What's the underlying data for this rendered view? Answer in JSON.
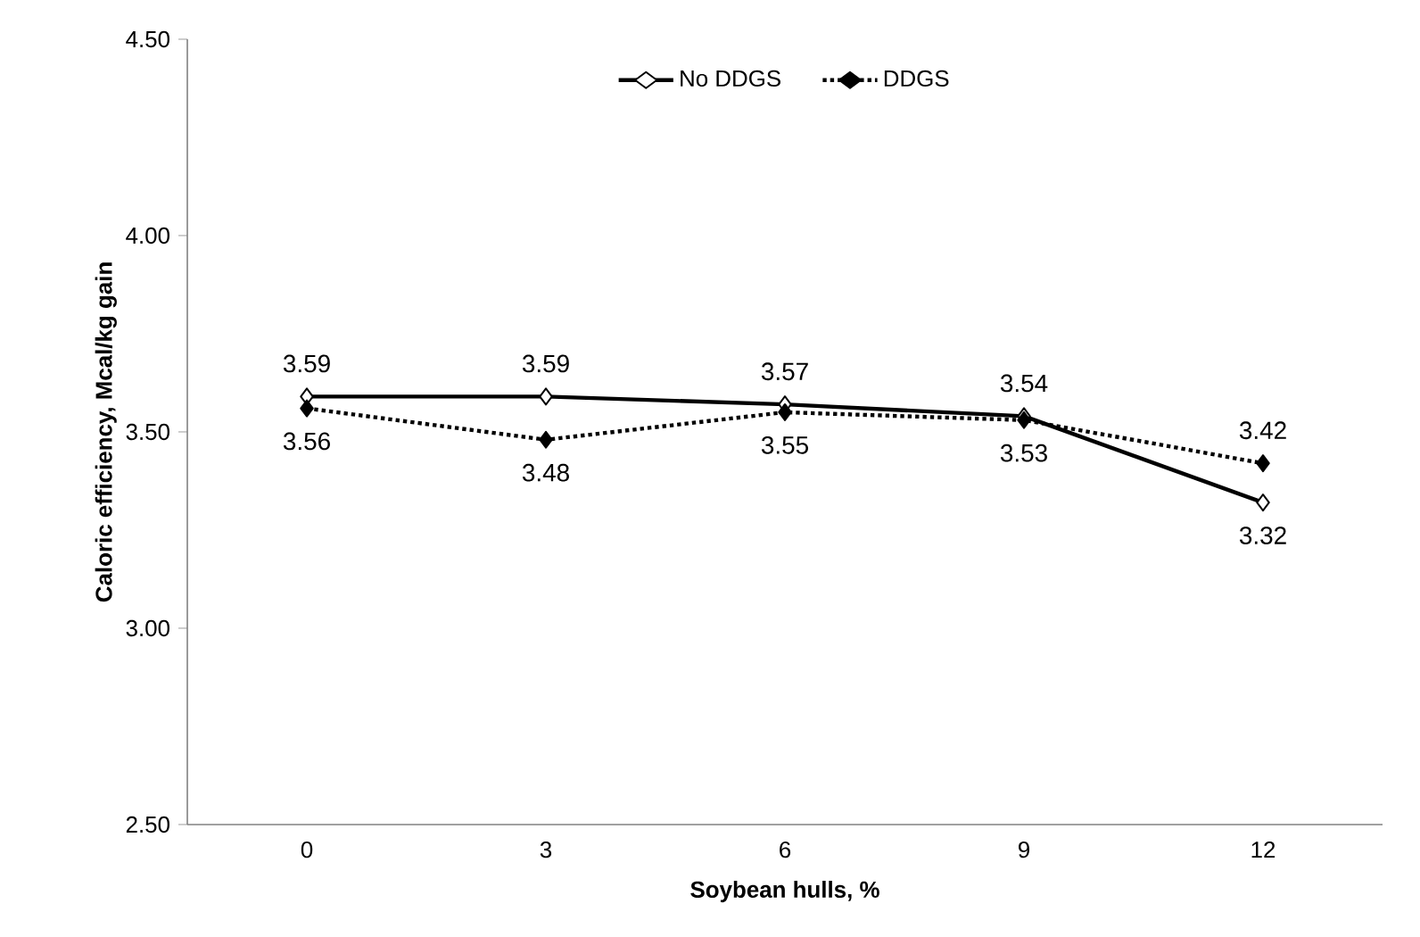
{
  "chart_data": {
    "type": "line",
    "xlabel": "Soybean hulls, %",
    "ylabel": "Caloric efficiency, Mcal/kg gain",
    "categories": [
      "0",
      "3",
      "6",
      "9",
      "12"
    ],
    "series": [
      {
        "name": "No DDGS",
        "color": "#000000",
        "line_style": "solid",
        "values": [
          3.59,
          3.59,
          3.57,
          3.54,
          3.32
        ]
      },
      {
        "name": "DDGS",
        "color": "#000000",
        "line_style": "dotted",
        "values": [
          3.56,
          3.48,
          3.55,
          3.53,
          3.42
        ]
      }
    ],
    "ylim": [
      2.5,
      4.5
    ],
    "yticks": [
      {
        "value": 2.5,
        "label": "2.50"
      },
      {
        "value": 3.0,
        "label": "3.00"
      },
      {
        "value": 3.5,
        "label": "3.50"
      },
      {
        "value": 4.0,
        "label": "4.00"
      },
      {
        "value": 4.5,
        "label": "4.50"
      }
    ],
    "marker": "diamond",
    "data_labels": true,
    "legend": "top",
    "grid": false
  }
}
